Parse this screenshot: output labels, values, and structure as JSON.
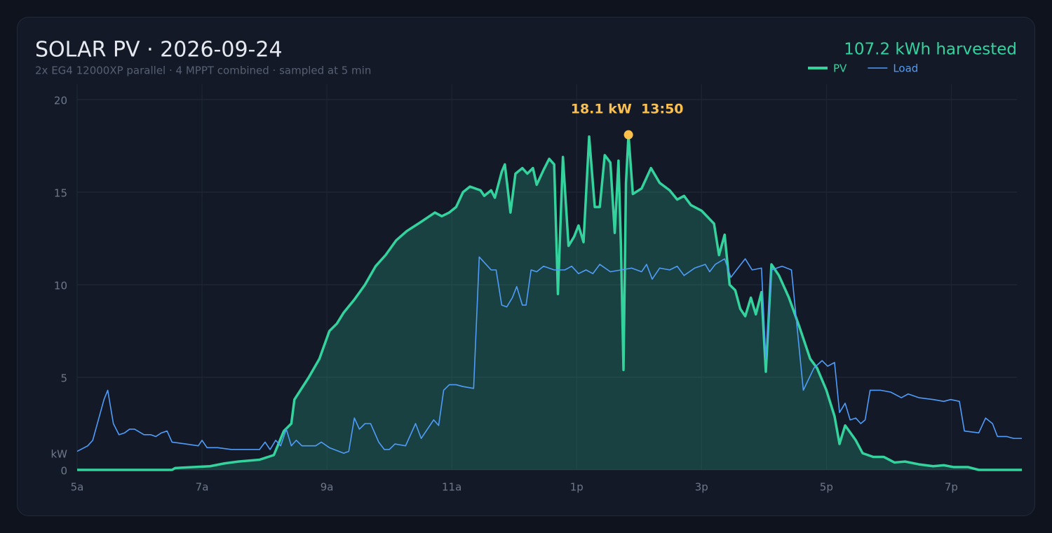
{
  "chart_data": {
    "type": "line",
    "title": "SOLAR PV  ·  2026-09-24",
    "subtitle": "2x EG4 12000XP parallel  ·  4 MPPT combined  ·  sampled at 5 min",
    "total": "107.2 kWh harvested",
    "y_unit": "kW",
    "xlim": [
      5,
      20.13
    ],
    "ylim": [
      0,
      20
    ],
    "xticks": [
      {
        "value": 5,
        "label": "5a"
      },
      {
        "value": 7,
        "label": "7a"
      },
      {
        "value": 9,
        "label": "9a"
      },
      {
        "value": 11,
        "label": "11a"
      },
      {
        "value": 13,
        "label": "1p"
      },
      {
        "value": 15,
        "label": "3p"
      },
      {
        "value": 17,
        "label": "5p"
      },
      {
        "value": 19,
        "label": "7p"
      }
    ],
    "yticks": [
      0,
      5,
      10,
      15,
      20
    ],
    "grid": true,
    "legend": "top-right",
    "annotation": {
      "text": "18.1 kW  13:50",
      "x": 13.83,
      "y": 18.1,
      "color": "#fbbf4e"
    },
    "series": [
      {
        "name": "PV",
        "color": "#34d39e",
        "area": true,
        "x": [
          5.0,
          6.52,
          6.57,
          7.13,
          7.36,
          7.58,
          7.92,
          8.15,
          8.31,
          8.43,
          8.48,
          8.71,
          8.88,
          9.04,
          9.16,
          9.27,
          9.44,
          9.61,
          9.78,
          9.94,
          10.11,
          10.28,
          10.51,
          10.73,
          10.84,
          10.96,
          11.07,
          11.18,
          11.29,
          11.46,
          11.52,
          11.63,
          11.69,
          11.8,
          11.85,
          11.94,
          12.02,
          12.13,
          12.21,
          12.3,
          12.36,
          12.47,
          12.56,
          12.64,
          12.7,
          12.78,
          12.87,
          12.96,
          13.03,
          13.11,
          13.2,
          13.29,
          13.37,
          13.45,
          13.54,
          13.61,
          13.67,
          13.71,
          13.75,
          13.79,
          13.83,
          13.9,
          14.04,
          14.19,
          14.33,
          14.49,
          14.61,
          14.72,
          14.83,
          15.0,
          15.2,
          15.28,
          15.37,
          15.45,
          15.54,
          15.62,
          15.7,
          15.79,
          15.87,
          15.96,
          16.03,
          16.12,
          16.24,
          16.4,
          16.57,
          16.74,
          16.85,
          17.0,
          17.13,
          17.21,
          17.3,
          17.47,
          17.58,
          17.75,
          17.92,
          18.09,
          18.26,
          18.48,
          18.71,
          18.88,
          19.04,
          19.27,
          19.44,
          20.13
        ],
        "values": [
          0,
          0,
          0.1,
          0.2,
          0.35,
          0.45,
          0.55,
          0.8,
          2.1,
          2.5,
          3.8,
          5.0,
          6.0,
          7.5,
          7.9,
          8.5,
          9.2,
          10.0,
          11.0,
          11.6,
          12.4,
          12.9,
          13.4,
          13.9,
          13.7,
          13.9,
          14.2,
          15.0,
          15.3,
          15.1,
          14.8,
          15.1,
          14.7,
          16.1,
          16.5,
          13.9,
          16.0,
          16.3,
          16.0,
          16.3,
          15.4,
          16.2,
          16.8,
          16.5,
          9.5,
          16.9,
          12.1,
          12.6,
          13.2,
          12.3,
          18.0,
          14.2,
          14.2,
          17.0,
          16.6,
          12.8,
          16.7,
          12.0,
          5.4,
          15.5,
          18.1,
          14.9,
          15.2,
          16.3,
          15.5,
          15.1,
          14.6,
          14.8,
          14.3,
          14.0,
          13.3,
          11.6,
          12.7,
          10.0,
          9.7,
          8.7,
          8.3,
          9.3,
          8.4,
          9.6,
          5.3,
          11.1,
          10.5,
          9.3,
          7.7,
          6.0,
          5.5,
          4.3,
          2.9,
          1.4,
          2.4,
          1.6,
          0.9,
          0.7,
          0.7,
          0.4,
          0.45,
          0.3,
          0.2,
          0.25,
          0.15,
          0.15,
          0,
          0
        ]
      },
      {
        "name": "Load",
        "color": "#4f9cf9",
        "area": false,
        "x": [
          5.0,
          5.17,
          5.25,
          5.34,
          5.43,
          5.49,
          5.58,
          5.67,
          5.76,
          5.84,
          5.92,
          6.07,
          6.18,
          6.26,
          6.35,
          6.44,
          6.52,
          6.74,
          6.94,
          7.0,
          7.08,
          7.25,
          7.47,
          7.92,
          8.01,
          8.09,
          8.18,
          8.26,
          8.35,
          8.43,
          8.51,
          8.6,
          8.82,
          8.91,
          9.04,
          9.27,
          9.35,
          9.44,
          9.52,
          9.61,
          9.7,
          9.83,
          9.92,
          10.0,
          10.09,
          10.26,
          10.42,
          10.51,
          10.71,
          10.79,
          10.87,
          10.96,
          11.07,
          11.18,
          11.35,
          11.44,
          11.63,
          11.71,
          11.8,
          11.88,
          11.97,
          12.04,
          12.13,
          12.19,
          12.27,
          12.36,
          12.47,
          12.64,
          12.81,
          12.92,
          13.03,
          13.15,
          13.26,
          13.37,
          13.54,
          13.71,
          13.88,
          14.04,
          14.12,
          14.21,
          14.33,
          14.49,
          14.61,
          14.72,
          14.89,
          15.06,
          15.13,
          15.22,
          15.37,
          15.47,
          15.56,
          15.7,
          15.81,
          15.96,
          16.03,
          16.12,
          16.29,
          16.44,
          16.63,
          16.8,
          16.93,
          17.02,
          17.13,
          17.21,
          17.3,
          17.38,
          17.47,
          17.55,
          17.62,
          17.7,
          17.87,
          18.03,
          18.2,
          18.31,
          18.48,
          18.71,
          18.88,
          18.99,
          19.13,
          19.21,
          19.44,
          19.55,
          19.66,
          19.74,
          19.89,
          20.0,
          20.13
        ],
        "values": [
          1.0,
          1.3,
          1.6,
          2.7,
          3.8,
          4.3,
          2.5,
          1.9,
          2.0,
          2.2,
          2.2,
          1.9,
          1.9,
          1.8,
          2.0,
          2.1,
          1.5,
          1.4,
          1.3,
          1.6,
          1.2,
          1.2,
          1.1,
          1.1,
          1.5,
          1.1,
          1.6,
          1.3,
          2.2,
          1.3,
          1.6,
          1.3,
          1.3,
          1.5,
          1.2,
          0.9,
          1.0,
          2.8,
          2.2,
          2.5,
          2.5,
          1.5,
          1.1,
          1.1,
          1.4,
          1.3,
          2.5,
          1.7,
          2.7,
          2.4,
          4.3,
          4.6,
          4.6,
          4.5,
          4.4,
          11.5,
          10.8,
          10.8,
          8.9,
          8.8,
          9.3,
          9.9,
          8.9,
          8.9,
          10.8,
          10.7,
          11.0,
          10.8,
          10.8,
          11.0,
          10.6,
          10.8,
          10.6,
          11.1,
          10.7,
          10.8,
          10.9,
          10.7,
          11.1,
          10.3,
          10.9,
          10.8,
          11.0,
          10.5,
          10.9,
          11.1,
          10.7,
          11.1,
          11.4,
          10.4,
          10.8,
          11.4,
          10.8,
          10.9,
          6.0,
          10.8,
          11.0,
          10.8,
          4.3,
          5.5,
          5.9,
          5.6,
          5.8,
          3.1,
          3.6,
          2.7,
          2.8,
          2.5,
          2.7,
          4.3,
          4.3,
          4.2,
          3.9,
          4.1,
          3.9,
          3.8,
          3.7,
          3.8,
          3.7,
          2.1,
          2.0,
          2.8,
          2.5,
          1.8,
          1.8,
          1.7,
          1.7
        ]
      }
    ]
  }
}
